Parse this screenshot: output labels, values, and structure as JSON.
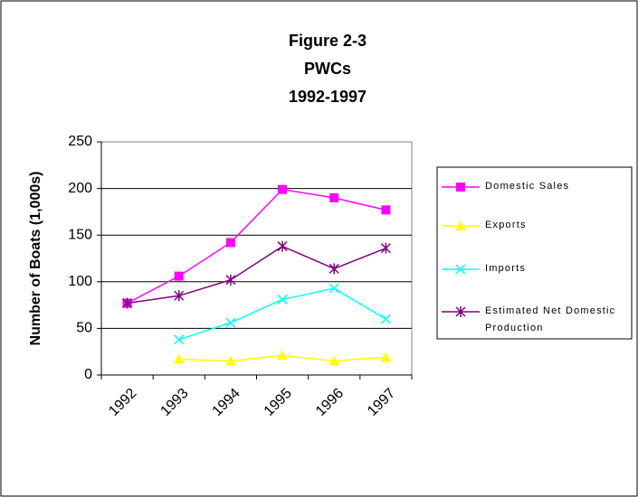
{
  "chart_data": {
    "type": "line",
    "title": "Figure 2-3",
    "subtitle": "PWCs",
    "subtitle2": "1992-1997",
    "y_label": "Number of Boats (1,000s)",
    "categories": [
      "1992",
      "1993",
      "1994",
      "1995",
      "1996",
      "1997"
    ],
    "series": [
      {
        "name": "Domestic Sales",
        "color": "#ff00ff",
        "marker": "square",
        "values": [
          77,
          106,
          142,
          199,
          190,
          177
        ]
      },
      {
        "name": "Exports",
        "color": "#ffff00",
        "marker": "triangle",
        "values": [
          null,
          17,
          15,
          21,
          15,
          19
        ]
      },
      {
        "name": "Imports",
        "color": "#00ffff",
        "marker": "x",
        "values": [
          null,
          38,
          56,
          81,
          93,
          60
        ]
      },
      {
        "name": "Estimated Net Domestic Production",
        "color": "#800080",
        "marker": "star",
        "values": [
          77,
          85,
          102,
          138,
          114,
          136
        ]
      }
    ],
    "ylim": [
      0,
      250
    ],
    "yticks": [
      0,
      50,
      100,
      150,
      200,
      250
    ],
    "grid": true
  }
}
